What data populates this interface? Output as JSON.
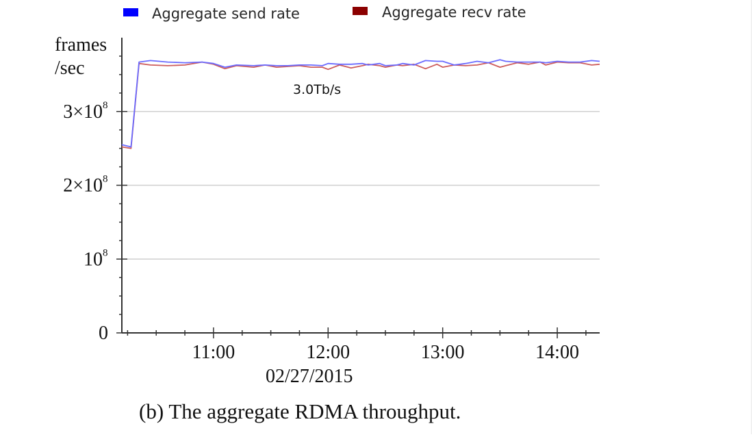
{
  "chart_data": {
    "type": "line",
    "x_unit": "time of day (hours)",
    "x": [
      10.2,
      10.28,
      10.35,
      10.45,
      10.6,
      10.75,
      10.9,
      11.0,
      11.1,
      11.2,
      11.35,
      11.45,
      11.55,
      11.65,
      11.75,
      11.85,
      11.95,
      12.0,
      12.1,
      12.2,
      12.3,
      12.35,
      12.45,
      12.5,
      12.6,
      12.65,
      12.75,
      12.85,
      12.95,
      13.0,
      13.1,
      13.2,
      13.3,
      13.4,
      13.5,
      13.55,
      13.65,
      13.75,
      13.85,
      13.9,
      14.0,
      14.1,
      14.2,
      14.3,
      14.37
    ],
    "series": [
      {
        "name": "Aggregate send rate",
        "color": "#0000ff",
        "line_color": "#6a6aff",
        "values": [
          2.55,
          2.52,
          3.67,
          3.69,
          3.67,
          3.66,
          3.67,
          3.65,
          3.6,
          3.63,
          3.62,
          3.63,
          3.62,
          3.62,
          3.63,
          3.63,
          3.62,
          3.65,
          3.64,
          3.64,
          3.65,
          3.63,
          3.65,
          3.62,
          3.63,
          3.65,
          3.63,
          3.69,
          3.68,
          3.68,
          3.63,
          3.65,
          3.68,
          3.66,
          3.7,
          3.68,
          3.67,
          3.67,
          3.67,
          3.66,
          3.68,
          3.67,
          3.67,
          3.69,
          3.68
        ]
      },
      {
        "name": "Aggregate recv rate",
        "color": "#8b0000",
        "line_color": "#cd5c5c",
        "values": [
          2.52,
          2.5,
          3.65,
          3.63,
          3.62,
          3.63,
          3.67,
          3.64,
          3.58,
          3.62,
          3.6,
          3.63,
          3.6,
          3.61,
          3.62,
          3.6,
          3.6,
          3.57,
          3.63,
          3.59,
          3.62,
          3.64,
          3.62,
          3.6,
          3.63,
          3.62,
          3.64,
          3.58,
          3.64,
          3.6,
          3.63,
          3.62,
          3.63,
          3.66,
          3.6,
          3.62,
          3.66,
          3.64,
          3.67,
          3.63,
          3.67,
          3.66,
          3.66,
          3.63,
          3.64
        ]
      }
    ],
    "ylabel_line1": "frames",
    "ylabel_line2": "/sec",
    "y_value_unit": "×10^8 frames/sec",
    "ylim": [
      0,
      4
    ],
    "xlim": [
      10.2,
      14.37
    ],
    "x_ticks": [
      {
        "value": 11,
        "label": "11:00"
      },
      {
        "value": 12,
        "label": "12:00"
      },
      {
        "value": 13,
        "label": "13:00"
      },
      {
        "value": 14,
        "label": "14:00"
      }
    ],
    "y_ticks": [
      {
        "value": 0,
        "label": "0",
        "exponent": ""
      },
      {
        "value": 1,
        "label": "10",
        "exponent": "8"
      },
      {
        "value": 2,
        "label": "2×10",
        "exponent": "8"
      },
      {
        "value": 3,
        "label": "3×10",
        "exponent": "8"
      }
    ],
    "date_label": "02/27/2015",
    "annotation": "3.0Tb/s",
    "grid": true,
    "legend_position": "top",
    "caption": "(b) The aggregate RDMA throughput."
  }
}
